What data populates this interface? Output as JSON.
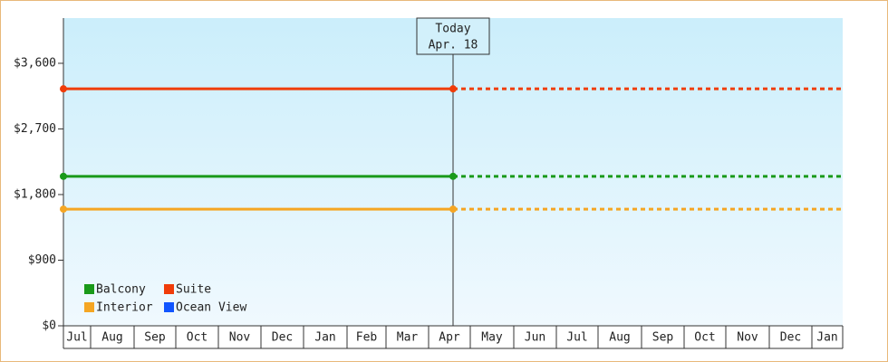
{
  "chart_data": {
    "type": "line",
    "categories": [
      "Jul",
      "Aug",
      "Sep",
      "Oct",
      "Nov",
      "Dec",
      "Jan",
      "Feb",
      "Mar",
      "Apr",
      "May",
      "Jun",
      "Jul",
      "Aug",
      "Sep",
      "Oct",
      "Nov",
      "Dec",
      "Jan"
    ],
    "series": [
      {
        "name": "Balcony",
        "color": "#1a9a1a",
        "values": [
          2050,
          2050,
          2050,
          2050,
          2050,
          2050,
          2050,
          2050,
          2050,
          2050,
          null,
          null,
          null,
          null,
          null,
          null,
          null,
          null,
          null
        ]
      },
      {
        "name": "Interior",
        "color": "#f5a623",
        "values": [
          1600,
          1600,
          1600,
          1600,
          1600,
          1600,
          1600,
          1600,
          1600,
          1600,
          null,
          null,
          null,
          null,
          null,
          null,
          null,
          null,
          null
        ]
      },
      {
        "name": "Suite",
        "color": "#f03c0a",
        "values": [
          3250,
          3250,
          3250,
          3250,
          3250,
          3250,
          3250,
          3250,
          3250,
          3250,
          null,
          null,
          null,
          null,
          null,
          null,
          null,
          null,
          null
        ]
      },
      {
        "name": "Ocean View",
        "color": "#1155ff",
        "values": [
          null,
          null,
          null,
          null,
          null,
          null,
          null,
          null,
          null,
          null,
          null,
          null,
          null,
          null,
          null,
          null,
          null,
          null,
          null
        ]
      }
    ],
    "ylim": [
      0,
      4220
    ],
    "yticks": [
      {
        "value": 0,
        "label": "$0"
      },
      {
        "value": 900,
        "label": "$900"
      },
      {
        "value": 1800,
        "label": "$1,800"
      },
      {
        "value": 2700,
        "label": "$2,700"
      },
      {
        "value": 3600,
        "label": "$3,600"
      }
    ],
    "annotation": {
      "title": "Today",
      "date": "Apr. 18"
    },
    "legend": "bottom-left"
  }
}
